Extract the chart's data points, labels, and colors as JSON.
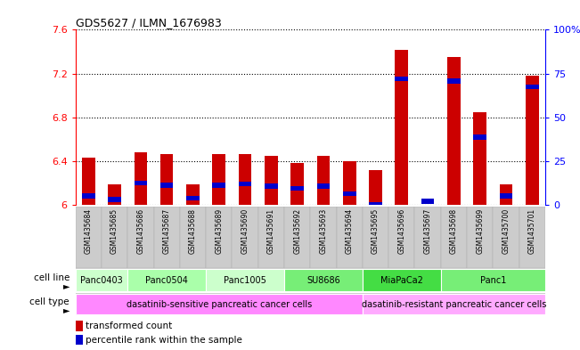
{
  "title": "GDS5627 / ILMN_1676983",
  "samples": [
    "GSM1435684",
    "GSM1435685",
    "GSM1435686",
    "GSM1435687",
    "GSM1435688",
    "GSM1435689",
    "GSM1435690",
    "GSM1435691",
    "GSM1435692",
    "GSM1435693",
    "GSM1435694",
    "GSM1435695",
    "GSM1435696",
    "GSM1435697",
    "GSM1435698",
    "GSM1435699",
    "GSM1435700",
    "GSM1435701"
  ],
  "red_values": [
    6.43,
    6.19,
    6.48,
    6.46,
    6.19,
    6.46,
    6.46,
    6.45,
    6.38,
    6.45,
    6.4,
    6.32,
    7.42,
    6.0,
    7.35,
    6.85,
    6.19,
    7.18
  ],
  "blue_values": [
    6.08,
    6.05,
    6.2,
    6.18,
    6.06,
    6.18,
    6.19,
    6.17,
    6.15,
    6.17,
    6.1,
    6.0,
    7.15,
    6.03,
    7.13,
    6.62,
    6.08,
    7.08
  ],
  "ymin": 6.0,
  "ymax": 7.6,
  "yticks": [
    6.0,
    6.4,
    6.8,
    7.2,
    7.6
  ],
  "ytick_labels": [
    "6",
    "6.4",
    "6.8",
    "7.2",
    "7.6"
  ],
  "right_yticks": [
    0,
    25,
    50,
    75,
    100
  ],
  "right_ytick_labels": [
    "0",
    "25",
    "50",
    "75",
    "100%"
  ],
  "cell_line_groups": [
    {
      "label": "Panc0403",
      "start": 0,
      "end": 2,
      "color": "#ccffcc"
    },
    {
      "label": "Panc0504",
      "start": 2,
      "end": 5,
      "color": "#aaffaa"
    },
    {
      "label": "Panc1005",
      "start": 5,
      "end": 8,
      "color": "#ccffcc"
    },
    {
      "label": "SU8686",
      "start": 8,
      "end": 11,
      "color": "#77ee77"
    },
    {
      "label": "MiaPaCa2",
      "start": 11,
      "end": 14,
      "color": "#44dd44"
    },
    {
      "label": "Panc1",
      "start": 14,
      "end": 18,
      "color": "#77ee77"
    }
  ],
  "cell_type_groups": [
    {
      "label": "dasatinib-sensitive pancreatic cancer cells",
      "start": 0,
      "end": 11,
      "color": "#ff88ff"
    },
    {
      "label": "dasatinib-resistant pancreatic cancer cells",
      "start": 11,
      "end": 18,
      "color": "#ffaaff"
    }
  ],
  "bar_color": "#cc0000",
  "blue_color": "#0000cc",
  "bg_color": "#ffffff",
  "bar_width": 0.5,
  "label_row1": "cell line",
  "label_row2": "cell type",
  "legend_red": "transformed count",
  "legend_blue": "percentile rank within the sample"
}
